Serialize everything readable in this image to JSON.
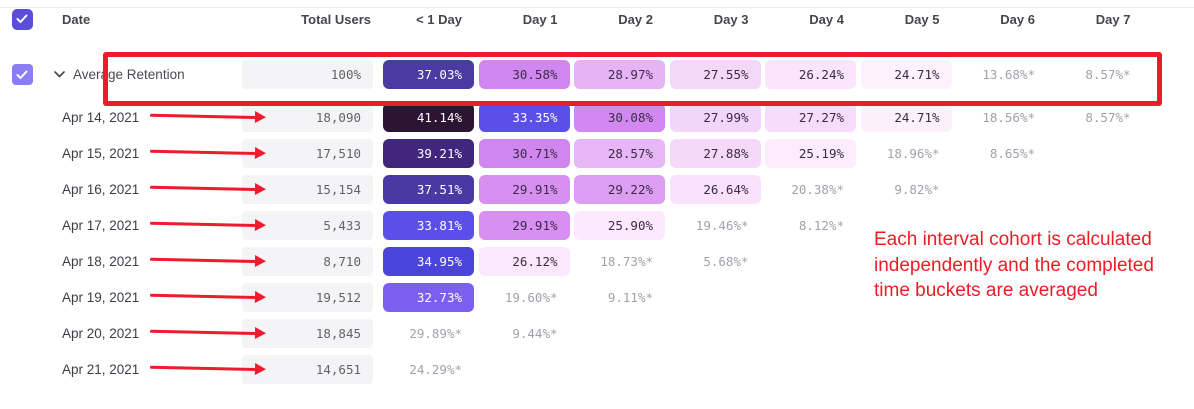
{
  "table": {
    "columns": [
      "Date",
      "Total Users",
      "< 1 Day",
      "Day 1",
      "Day 2",
      "Day 3",
      "Day 4",
      "Day 5",
      "Day 6",
      "Day 7"
    ],
    "average_row": {
      "label": "Average Retention",
      "total": "100%",
      "values": [
        {
          "text": "37.03%",
          "bg": "#4c3aa3",
          "fg": "#ffffff"
        },
        {
          "text": "30.58%",
          "bg": "#d187f0",
          "fg": "#3c2b46"
        },
        {
          "text": "28.97%",
          "bg": "#e6b3f6",
          "fg": "#3c2b46"
        },
        {
          "text": "27.55%",
          "bg": "#f5d7fa",
          "fg": "#3c2b46"
        },
        {
          "text": "26.24%",
          "bg": "#fbe5fc",
          "fg": "#3c2b46"
        },
        {
          "text": "24.71%",
          "bg": "#fdf1fd",
          "fg": "#3c2b46"
        },
        {
          "text": "13.68%*",
          "bg": "",
          "fg": "#a1a1ab"
        },
        {
          "text": "8.57%*",
          "bg": "",
          "fg": "#a1a1ab"
        }
      ]
    },
    "rows": [
      {
        "date": "Apr 14, 2021",
        "total": "18,090",
        "values": [
          {
            "text": "41.14%",
            "bg": "#2c1533",
            "fg": "#ffffff"
          },
          {
            "text": "33.35%",
            "bg": "#5a4fe6",
            "fg": "#ffffff"
          },
          {
            "text": "30.08%",
            "bg": "#d288f0",
            "fg": "#3c2b46"
          },
          {
            "text": "27.99%",
            "bg": "#f4d5fa",
            "fg": "#3c2b46"
          },
          {
            "text": "27.27%",
            "bg": "#f7dcfb",
            "fg": "#3c2b46"
          },
          {
            "text": "24.71%",
            "bg": "#fdf0fd",
            "fg": "#3c2b46"
          },
          {
            "text": "18.56%*",
            "bg": "",
            "fg": "#a1a1ab"
          },
          {
            "text": "8.57%*",
            "bg": "",
            "fg": "#a1a1ab"
          }
        ]
      },
      {
        "date": "Apr 15, 2021",
        "total": "17,510",
        "values": [
          {
            "text": "39.21%",
            "bg": "#40277d",
            "fg": "#ffffff"
          },
          {
            "text": "30.71%",
            "bg": "#d086ef",
            "fg": "#3c2b46"
          },
          {
            "text": "28.57%",
            "bg": "#e7b6f7",
            "fg": "#3c2b46"
          },
          {
            "text": "27.88%",
            "bg": "#f5d8fa",
            "fg": "#3c2b46"
          },
          {
            "text": "25.19%",
            "bg": "#fcecfd",
            "fg": "#3c2b46"
          },
          {
            "text": "18.96%*",
            "bg": "",
            "fg": "#a1a1ab"
          },
          {
            "text": "8.65%*",
            "bg": "",
            "fg": "#a1a1ab"
          }
        ]
      },
      {
        "date": "Apr 16, 2021",
        "total": "15,154",
        "values": [
          {
            "text": "37.51%",
            "bg": "#4a39a5",
            "fg": "#ffffff"
          },
          {
            "text": "29.91%",
            "bg": "#d78ff1",
            "fg": "#3c2b46"
          },
          {
            "text": "29.22%",
            "bg": "#dc9df3",
            "fg": "#3c2b46"
          },
          {
            "text": "26.64%",
            "bg": "#fae2fc",
            "fg": "#3c2b46"
          },
          {
            "text": "20.38%*",
            "bg": "",
            "fg": "#a1a1ab"
          },
          {
            "text": "9.82%*",
            "bg": "",
            "fg": "#a1a1ab"
          }
        ]
      },
      {
        "date": "Apr 17, 2021",
        "total": "5,433",
        "values": [
          {
            "text": "33.81%",
            "bg": "#5a50e8",
            "fg": "#ffffff"
          },
          {
            "text": "29.91%",
            "bg": "#d78ff1",
            "fg": "#3c2b46"
          },
          {
            "text": "25.90%",
            "bg": "#fce9fd",
            "fg": "#3c2b46"
          },
          {
            "text": "19.46%*",
            "bg": "",
            "fg": "#a1a1ab"
          },
          {
            "text": "8.12%*",
            "bg": "",
            "fg": "#a1a1ab"
          }
        ]
      },
      {
        "date": "Apr 18, 2021",
        "total": "8,710",
        "values": [
          {
            "text": "34.95%",
            "bg": "#4b44da",
            "fg": "#ffffff"
          },
          {
            "text": "26.12%",
            "bg": "#fbe8fd",
            "fg": "#3c2b46"
          },
          {
            "text": "18.73%*",
            "bg": "",
            "fg": "#a1a1ab"
          },
          {
            "text": "5.68%*",
            "bg": "",
            "fg": "#a1a1ab"
          }
        ]
      },
      {
        "date": "Apr 19, 2021",
        "total": "19,512",
        "values": [
          {
            "text": "32.73%",
            "bg": "#7b5ff0",
            "fg": "#ffffff"
          },
          {
            "text": "19.60%*",
            "bg": "",
            "fg": "#a1a1ab"
          },
          {
            "text": "9.11%*",
            "bg": "",
            "fg": "#a1a1ab"
          }
        ]
      },
      {
        "date": "Apr 20, 2021",
        "total": "18,845",
        "values": [
          {
            "text": "29.89%*",
            "bg": "",
            "fg": "#a1a1ab"
          },
          {
            "text": "9.44%*",
            "bg": "",
            "fg": "#a1a1ab"
          }
        ]
      },
      {
        "date": "Apr 21, 2021",
        "total": "14,651",
        "values": [
          {
            "text": "24.29%*",
            "bg": "",
            "fg": "#a1a1ab"
          }
        ]
      }
    ]
  },
  "annotations": {
    "note": "Each interval cohort is calculated independently and the completed time buckets are averaged",
    "note_color": "#ee1c25",
    "highlight_border_color": "#ed1b2d",
    "arrow_color": "#ed1b2d"
  },
  "colors": {
    "accent": "#5b4fd9",
    "row_checkbox": "#8b7ef2",
    "total_cell_bg": "#f4f4f6",
    "incomplete_text": "#a1a1ab"
  }
}
